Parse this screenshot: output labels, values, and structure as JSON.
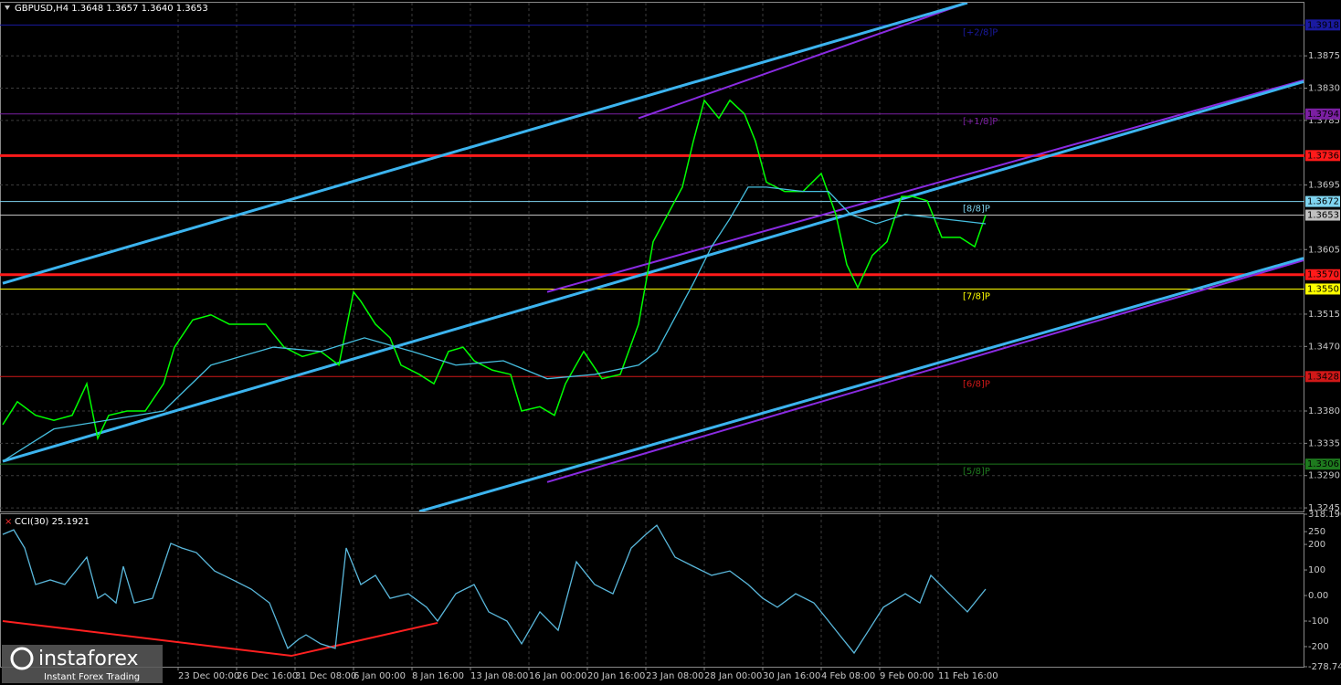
{
  "chart_data": [
    {
      "type": "line",
      "title": "GBPUSD,H4  1.3648 1.3657 1.3640 1.3653",
      "xlim": [
        0,
        356
      ],
      "xticks": [
        {
          "value": 48,
          "label": "23 Dec 00:00"
        },
        {
          "value": 64,
          "label": "26 Dec 16:00"
        },
        {
          "value": 80,
          "label": "31 Dec 08:00"
        },
        {
          "value": 96,
          "label": "6 Jan 00:00"
        },
        {
          "value": 112,
          "label": "8 Jan 16:00"
        },
        {
          "value": 128,
          "label": "13 Jan 08:00"
        },
        {
          "value": 144,
          "label": "16 Jan 00:00"
        },
        {
          "value": 160,
          "label": "20 Jan 16:00"
        },
        {
          "value": 176,
          "label": "23 Jan 08:00"
        },
        {
          "value": 192,
          "label": "28 Jan 00:00"
        },
        {
          "value": 208,
          "label": "30 Jan 16:00"
        },
        {
          "value": 224,
          "label": "4 Feb 08:00"
        },
        {
          "value": 240,
          "label": "9 Feb 00:00"
        },
        {
          "value": 256,
          "label": "11 Feb 16:00"
        }
      ],
      "ylim": [
        1.324,
        1.3949
      ],
      "yticks": [
        1.3875,
        {
          "value": 1.383,
          "label": "1.3830"
        },
        1.3785,
        1.3695,
        1.3605,
        1.3515,
        {
          "value": 1.347,
          "label": "1.3470"
        },
        {
          "value": 1.338,
          "label": "1.3380"
        },
        1.3335,
        {
          "value": 1.329,
          "label": "1.3290"
        },
        1.3245
      ],
      "grid": true,
      "series": [
        {
          "color": "#00ff00",
          "x": [
            0,
            4,
            9,
            14,
            19,
            23,
            26,
            29,
            34,
            39,
            44,
            47,
            52,
            57,
            62,
            67,
            72,
            74,
            77,
            82,
            87,
            92,
            96,
            98,
            102,
            106,
            109,
            114,
            118,
            122,
            126,
            129,
            134,
            139,
            142,
            147,
            151,
            154,
            159,
            164,
            169,
            174,
            178,
            182,
            186,
            189,
            192,
            196,
            199,
            203,
            206,
            209,
            214,
            219,
            224,
            228,
            231,
            234,
            238,
            242,
            246,
            249,
            253,
            257,
            262,
            266,
            269
          ],
          "values": [
            1.3361,
            1.3393,
            1.3374,
            1.3367,
            1.3374,
            1.3418,
            1.3342,
            1.3374,
            1.338,
            1.338,
            1.3418,
            1.3469,
            1.3507,
            1.3514,
            1.3501,
            1.3501,
            1.3501,
            1.3488,
            1.3469,
            1.3456,
            1.3463,
            1.3444,
            1.3546,
            1.3533,
            1.3501,
            1.3482,
            1.3444,
            1.3431,
            1.3418,
            1.3463,
            1.3469,
            1.345,
            1.3437,
            1.3431,
            1.338,
            1.3386,
            1.3374,
            1.3418,
            1.3463,
            1.3425,
            1.3431,
            1.3501,
            1.3616,
            1.3654,
            1.3692,
            1.3756,
            1.3813,
            1.3788,
            1.3813,
            1.3794,
            1.3756,
            1.3699,
            1.3686,
            1.3686,
            1.3711,
            1.3654,
            1.3584,
            1.3552,
            1.3597,
            1.3616,
            1.3679,
            1.3679,
            1.3673,
            1.3622,
            1.3622,
            1.3609,
            1.3653
          ]
        },
        {
          "color": "#46bfe0",
          "x": [
            0,
            14,
            44,
            57,
            74,
            87,
            99,
            112,
            124,
            137,
            149,
            162,
            174,
            179,
            189,
            194,
            199,
            204,
            209,
            219,
            226,
            232,
            239,
            247,
            257,
            269
          ],
          "values": [
            1.331,
            1.3355,
            1.338,
            1.3444,
            1.3469,
            1.3463,
            1.3482,
            1.3463,
            1.3444,
            1.345,
            1.3425,
            1.3431,
            1.3444,
            1.3463,
            1.3558,
            1.3609,
            1.3648,
            1.3692,
            1.3692,
            1.3686,
            1.3686,
            1.3654,
            1.3641,
            1.3654,
            1.3648,
            1.3641
          ]
        }
      ],
      "trend_lines": [
        {
          "color": "#8a2be2",
          "x": [
            174,
            264
          ],
          "values": [
            1.3788,
            1.3949
          ]
        },
        {
          "color": "#8a2be2",
          "x": [
            149,
            356
          ],
          "values": [
            1.3546,
            1.3841
          ]
        },
        {
          "color": "#8a2be2",
          "x": [
            149,
            356
          ],
          "values": [
            1.3281,
            1.359
          ]
        },
        {
          "color": "#3cb4ef",
          "x": [
            0,
            264
          ],
          "values": [
            1.3558,
            1.3949
          ]
        },
        {
          "color": "#3cb4ef",
          "x": [
            0,
            356
          ],
          "values": [
            1.331,
            1.3839
          ]
        },
        {
          "color": "#3cb4ef",
          "x": [
            114,
            356
          ],
          "values": [
            1.324,
            1.3593
          ]
        }
      ],
      "levels": [
        {
          "value": 1.3918,
          "color": "#1a1aa0",
          "name": "[+2/8]P"
        },
        {
          "value": 1.3794,
          "color": "#7b1fa2",
          "name": "[+1/8]P"
        },
        {
          "value": 1.3736,
          "color": "#ff1a1a"
        },
        {
          "value": 1.3672,
          "color": "#7fd4f0",
          "name": "[8/8]P"
        },
        {
          "value": 1.3653,
          "color": "#c0c0c0"
        },
        {
          "value": 1.357,
          "label": "1.3570",
          "color": "#ff1a1a"
        },
        {
          "value": 1.355,
          "label": "1.3550",
          "color": "#ffff00",
          "name": "[7/8]P"
        },
        {
          "value": 1.3428,
          "color": "#d01818",
          "name": "[6/8]P"
        },
        {
          "value": 1.3306,
          "color": "#1e7a1e",
          "name": "[5/8]P"
        }
      ],
      "watermark": {
        "brand": "instaforex",
        "tagline": "Instant Forex Trading"
      }
    },
    {
      "type": "line",
      "title": "CCI(30) 25.1921",
      "xlim": [
        0,
        356
      ],
      "ylim": [
        -278.742,
        318.1904
      ],
      "yticks": [
        318.1904,
        250,
        200,
        100,
        {
          "value": 0,
          "label": "0.00"
        },
        -100,
        -200,
        -278.742
      ],
      "series": [
        {
          "color": "#5ab8dc",
          "x": [
            0,
            3,
            6,
            9,
            13,
            17,
            21,
            23,
            26,
            28,
            31,
            33,
            36,
            41,
            46,
            49,
            53,
            58,
            63,
            68,
            73,
            76,
            78,
            81,
            83,
            87,
            91,
            94,
            98,
            102,
            106,
            111,
            116,
            119,
            124,
            129,
            133,
            138,
            142,
            147,
            152,
            157,
            162,
            167,
            172,
            176,
            179,
            184,
            189,
            194,
            199,
            204,
            208,
            212,
            217,
            222,
            226,
            229,
            233,
            237,
            241,
            247,
            251,
            254,
            259,
            264,
            269
          ],
          "values": [
            239,
            257,
            186,
            43,
            61,
            43,
            114,
            150,
            -11,
            7,
            -29,
            114,
            -29,
            -11,
            204,
            186,
            168,
            96,
            61,
            25,
            -29,
            -136,
            -207,
            -171,
            -154,
            -189,
            -207,
            186,
            43,
            79,
            -11,
            7,
            -46,
            -100,
            7,
            43,
            -64,
            -100,
            -189,
            -64,
            -136,
            132,
            43,
            7,
            186,
            239,
            275,
            150,
            114,
            79,
            96,
            43,
            -11,
            -46,
            7,
            -29,
            -100,
            -154,
            -225,
            -136,
            -46,
            7,
            -29,
            79,
            7,
            -64,
            25.1921
          ]
        }
      ],
      "trend_lines": [
        {
          "color": "#ff2020",
          "x": [
            0,
            79,
            119
          ],
          "values": [
            -100,
            -236,
            -107
          ]
        }
      ]
    }
  ]
}
